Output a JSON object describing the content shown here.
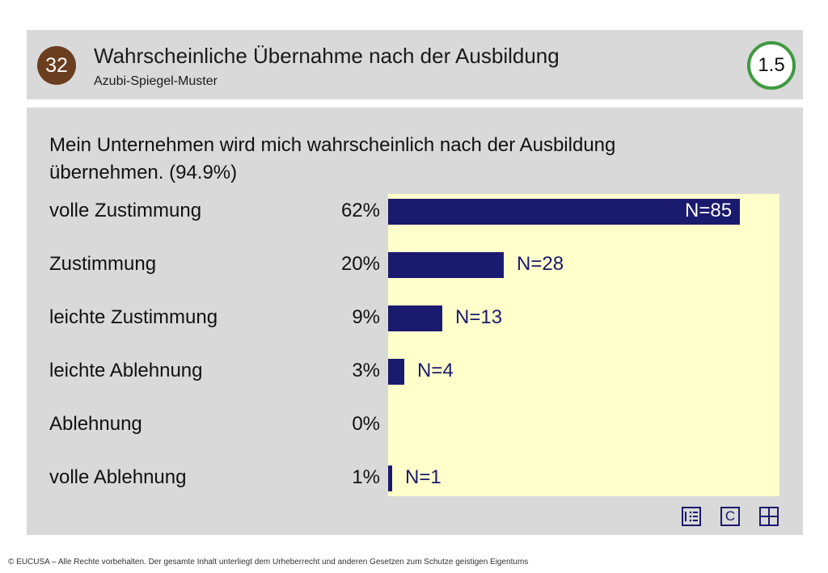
{
  "header": {
    "badge": "32",
    "title": "Wahrscheinliche Übernahme nach der Ausbildung",
    "subtitle": "Azubi-Spiegel-Muster",
    "version": "1.5"
  },
  "question": "Mein Unternehmen wird mich wahrscheinlich nach der Ausbildung übernehmen. (94.9%)",
  "chart_data": {
    "type": "bar",
    "orientation": "horizontal",
    "categories": [
      "volle Zustimmung",
      "Zustimmung",
      "leichte Zustimmung",
      "leichte Ablehnung",
      "Ablehnung",
      "volle Ablehnung"
    ],
    "percent_labels": [
      "62%",
      "20%",
      "9%",
      "3%",
      "0%",
      "1%"
    ],
    "n_labels": [
      "N=85",
      "N=28",
      "N=13",
      "N=4",
      "",
      "N=1"
    ],
    "values": [
      85,
      28,
      13,
      4,
      0,
      1
    ],
    "bar_color": "#1a1a6e",
    "plot_background": "#ffffcc"
  },
  "toolbar": {
    "icons": [
      "list-icon",
      "copyright-icon",
      "grid-icon"
    ],
    "copyright_label": "C"
  },
  "footer": "© EUCUSA – Alle Rechte vorbehalten. Der gesamte Inhalt unterliegt dem Urheberrecht und anderen Gesetzen zum Schutze geistigen Eigentums"
}
